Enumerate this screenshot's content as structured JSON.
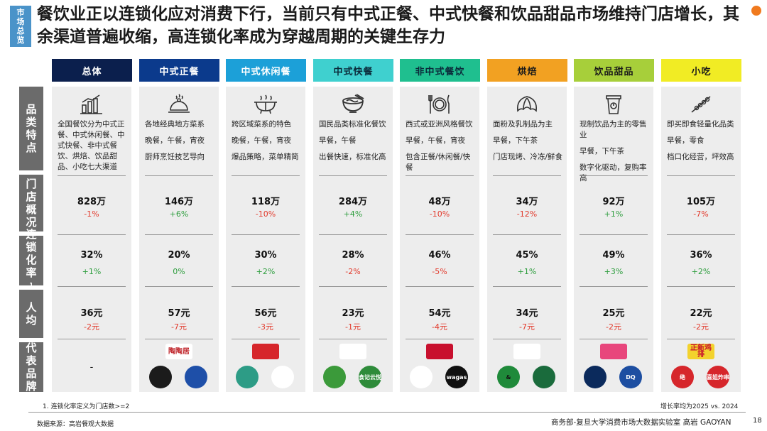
{
  "side_tag": "市场总览",
  "title": "餐饮业正以连锁化应对消费下行，当前只有中式正餐、中式快餐和饮品甜品市场维持门店增长，其余渠道普遍收缩，高连锁化率成为穿越周期的关键生存力",
  "row_labels": {
    "category": "品类特点",
    "stores": "门店概况",
    "chain": "连锁化率",
    "chain_sup": "1",
    "per_capita": "人均",
    "brands": "代表品牌"
  },
  "columns": [
    {
      "header": "总体",
      "header_bg": "#0b1f4d",
      "header_color": "#ffffff",
      "icon": "bar-chart-icon",
      "desc": [
        "全国餐饮分为中式正餐、中式休闲餐、中式快餐、非中式餐饮、烘焙、饮品甜品、小吃七大渠道"
      ],
      "stores": "828万",
      "stores_chg": "-1%",
      "chain": "32%",
      "chain_chg": "+1%",
      "per_capita": "36元",
      "per_capita_chg": "-2元",
      "brands": "-"
    },
    {
      "header": "中式正餐",
      "header_bg": "#0b3a8c",
      "header_color": "#ffffff",
      "icon": "cloche-icon",
      "desc": [
        "各地经典地方菜系",
        "晚餐，午餐，宵夜",
        "厨师烹饪技艺导向"
      ],
      "stores": "146万",
      "stores_chg": "+6%",
      "chain": "20%",
      "chain_chg": "0%",
      "per_capita": "57元",
      "per_capita_chg": "-7元"
    },
    {
      "header": "中式休闲餐",
      "header_bg": "#1ca0d8",
      "header_color": "#ffffff",
      "icon": "hotpot-icon",
      "desc": [
        "跨区域菜系的特色",
        "晚餐，午餐，宵夜",
        "爆品策略，菜单精简"
      ],
      "stores": "118万",
      "stores_chg": "-10%",
      "chain": "30%",
      "chain_chg": "+2%",
      "per_capita": "56元",
      "per_capita_chg": "-3元"
    },
    {
      "header": "中式快餐",
      "header_bg": "#3fd0cf",
      "header_color": "#0b2a3a",
      "icon": "noodle-bowl-icon",
      "desc": [
        "国民品类标准化餐饮",
        "早餐，午餐",
        "出餐快速，标准化高"
      ],
      "stores": "284万",
      "stores_chg": "+4%",
      "chain": "28%",
      "chain_chg": "-2%",
      "per_capita": "23元",
      "per_capita_chg": "-1元"
    },
    {
      "header": "非中式餐饮",
      "header_bg": "#1fbf8f",
      "header_color": "#0b2a3a",
      "icon": "plate-cutlery-icon",
      "desc": [
        "西式或亚洲风格餐饮",
        "早餐，午餐，宵夜",
        "包含正餐/休闲餐/快餐"
      ],
      "stores": "48万",
      "stores_chg": "-10%",
      "chain": "46%",
      "chain_chg": "-5%",
      "per_capita": "54元",
      "per_capita_chg": "-4元"
    },
    {
      "header": "烘焙",
      "header_bg": "#f2a122",
      "header_color": "#1a1a1a",
      "icon": "croissant-icon",
      "desc": [
        "面粉及乳制品为主",
        "早餐，下午茶",
        "门店现烤、冷冻/鲜食"
      ],
      "stores": "34万",
      "stores_chg": "-12%",
      "chain": "45%",
      "chain_chg": "+1%",
      "per_capita": "34元",
      "per_capita_chg": "-7元"
    },
    {
      "header": "饮品甜品",
      "header_bg": "#a7cf3a",
      "header_color": "#1a1a1a",
      "icon": "drink-cup-icon",
      "desc": [
        "现制饮品为主的零售业",
        "早餐，下午茶",
        "数字化驱动，复购率高"
      ],
      "stores": "92万",
      "stores_chg": "+1%",
      "chain": "49%",
      "chain_chg": "+3%",
      "per_capita": "25元",
      "per_capita_chg": "-2元"
    },
    {
      "header": "小吃",
      "header_bg": "#f1ec24",
      "header_color": "#1a1a1a",
      "icon": "skewer-icon",
      "desc": [
        "即买即食轻量化品类",
        "早餐，零食",
        "档口化经营，坪效高"
      ],
      "stores": "105万",
      "stores_chg": "-7%",
      "chain": "36%",
      "chain_chg": "+2%",
      "per_capita": "22元",
      "per_capita_chg": "-2元"
    }
  ],
  "brand_logos": [
    [],
    [
      {
        "text": "陶陶居",
        "bg": "#ffffff",
        "fg": "#c0272d",
        "shape": "wordmark"
      },
      {
        "text": "",
        "bg": "#1b1b1b",
        "fg": "#ffffff"
      },
      {
        "text": "",
        "bg": "#1e4fa8",
        "fg": "#ffffff"
      }
    ],
    [
      {
        "text": "",
        "bg": "#d6262b",
        "fg": "#ffffff"
      },
      {
        "text": "",
        "bg": "#2d9c86",
        "fg": "#ffffff"
      },
      {
        "text": "",
        "bg": "#ffffff",
        "fg": "#222222"
      }
    ],
    [
      {
        "text": "",
        "bg": "#ffffff",
        "fg": "#2f8b3a",
        "shape": "wordmark"
      },
      {
        "text": "",
        "bg": "#3b9a3a",
        "fg": "#ffffff"
      },
      {
        "text": "食记云悦",
        "bg": "#2e8b3a",
        "fg": "#ffffff"
      }
    ],
    [
      {
        "text": "",
        "bg": "#c8102e",
        "fg": "#ffffff"
      },
      {
        "text": "",
        "bg": "#ffffff",
        "fg": "#c8102e"
      },
      {
        "text": "wagas",
        "bg": "#111111",
        "fg": "#ffffff"
      }
    ],
    [
      {
        "text": "",
        "bg": "#ffffff",
        "fg": "#222222",
        "shape": "wordmark"
      },
      {
        "text": "&",
        "bg": "#1f8a3a",
        "fg": "#111111"
      },
      {
        "text": "",
        "bg": "#1a6b3c",
        "fg": "#ffffff"
      }
    ],
    [
      {
        "text": "",
        "bg": "#e8467c",
        "fg": "#ffffff"
      },
      {
        "text": "",
        "bg": "#0b2a5c",
        "fg": "#ffffff"
      },
      {
        "text": "DQ",
        "bg": "#1d4ea1",
        "fg": "#ffffff"
      }
    ],
    [
      {
        "text": "正新鸡排",
        "bg": "#f3d22d",
        "fg": "#c8102e",
        "shape": "wordmark"
      },
      {
        "text": "绝",
        "bg": "#d6262b",
        "fg": "#ffffff"
      },
      {
        "text": "喜姐炸串",
        "bg": "#d6262b",
        "fg": "#ffffff"
      }
    ]
  ],
  "footnote": "1. 连锁化率定义为门店数>=2",
  "growth_note": "增长率均为2025 vs. 2024",
  "source": "数据来源：高岩餐观大数据",
  "footer_org": "商务部-复旦大学消费市场大数据实验室   高岩 GAOYAN",
  "page_number": "18"
}
